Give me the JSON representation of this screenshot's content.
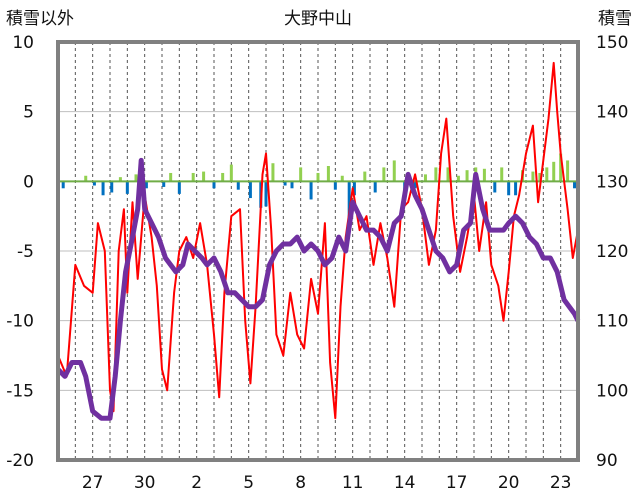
{
  "chart_data": {
    "type": "line",
    "title": "大野中山",
    "left_axis_title": "積雪以外",
    "right_axis_title": "積雪",
    "y_left": {
      "min": -20,
      "max": 10,
      "ticks": [
        10,
        5,
        0,
        -5,
        -10,
        -15,
        -20
      ]
    },
    "y_right": {
      "min": 90,
      "max": 150,
      "ticks": [
        150,
        140,
        130,
        120,
        110,
        100,
        90
      ]
    },
    "x": {
      "min": 25,
      "max": 55,
      "ticks": [
        27,
        30,
        33,
        36,
        39,
        42,
        45,
        48,
        51,
        54
      ],
      "tick_labels": [
        "27",
        "30",
        "2",
        "5",
        "8",
        "11",
        "14",
        "17",
        "20",
        "23"
      ]
    },
    "grid": {
      "horizontal": true,
      "vertical_dashed": "daily"
    },
    "colors": {
      "temperature": "#ff0000",
      "precip_positive": "#92d050",
      "precip_negative": "#0070c0",
      "snow_depth": "#7030a0",
      "frame": "#808080",
      "zero_line": "#70ad47"
    },
    "series": [
      {
        "axis": "left",
        "color": "#ff0000",
        "points": [
          [
            25.0,
            -12.5
          ],
          [
            25.5,
            -14.0
          ],
          [
            26.0,
            -6.0
          ],
          [
            26.5,
            -7.5
          ],
          [
            27.0,
            -8.0
          ],
          [
            27.3,
            -3.0
          ],
          [
            27.7,
            -5.0
          ],
          [
            28.0,
            -15.0
          ],
          [
            28.2,
            -16.5
          ],
          [
            28.5,
            -5.0
          ],
          [
            28.8,
            -2.0
          ],
          [
            29.0,
            -8.0
          ],
          [
            29.3,
            -1.5
          ],
          [
            29.6,
            -7.0
          ],
          [
            30.0,
            -1.0
          ],
          [
            30.4,
            -4.0
          ],
          [
            30.7,
            -7.5
          ],
          [
            31.0,
            -13.5
          ],
          [
            31.3,
            -15.0
          ],
          [
            31.7,
            -8.0
          ],
          [
            32.0,
            -5.0
          ],
          [
            32.4,
            -4.0
          ],
          [
            32.8,
            -5.5
          ],
          [
            33.2,
            -3.0
          ],
          [
            33.6,
            -6.0
          ],
          [
            34.0,
            -11.0
          ],
          [
            34.3,
            -15.5
          ],
          [
            34.6,
            -8.0
          ],
          [
            35.0,
            -2.5
          ],
          [
            35.5,
            -2.0
          ],
          [
            35.8,
            -10.0
          ],
          [
            36.1,
            -14.5
          ],
          [
            36.4,
            -9.0
          ],
          [
            36.8,
            0.5
          ],
          [
            37.0,
            2.0
          ],
          [
            37.3,
            -3.5
          ],
          [
            37.6,
            -11.0
          ],
          [
            38.0,
            -12.5
          ],
          [
            38.4,
            -8.0
          ],
          [
            38.8,
            -11.0
          ],
          [
            39.2,
            -12.0
          ],
          [
            39.6,
            -7.0
          ],
          [
            40.0,
            -9.5
          ],
          [
            40.4,
            -3.0
          ],
          [
            40.7,
            -13.0
          ],
          [
            41.0,
            -17.0
          ],
          [
            41.3,
            -9.0
          ],
          [
            41.6,
            -4.0
          ],
          [
            42.0,
            -0.5
          ],
          [
            42.4,
            -3.5
          ],
          [
            42.8,
            -2.5
          ],
          [
            43.2,
            -6.0
          ],
          [
            43.6,
            -3.0
          ],
          [
            44.0,
            -5.5
          ],
          [
            44.4,
            -9.0
          ],
          [
            44.8,
            -2.0
          ],
          [
            45.2,
            -1.5
          ],
          [
            45.6,
            0.5
          ],
          [
            46.0,
            -2.0
          ],
          [
            46.4,
            -6.0
          ],
          [
            46.8,
            -3.5
          ],
          [
            47.1,
            2.0
          ],
          [
            47.4,
            4.5
          ],
          [
            47.8,
            -2.5
          ],
          [
            48.2,
            -6.5
          ],
          [
            48.6,
            -4.0
          ],
          [
            49.0,
            -1.0
          ],
          [
            49.3,
            -5.0
          ],
          [
            49.7,
            -1.5
          ],
          [
            50.0,
            -6.0
          ],
          [
            50.4,
            -7.5
          ],
          [
            50.7,
            -10.0
          ],
          [
            51.0,
            -6.5
          ],
          [
            51.3,
            -2.5
          ],
          [
            51.6,
            -1.0
          ],
          [
            52.0,
            2.0
          ],
          [
            52.4,
            4.0
          ],
          [
            52.7,
            -1.5
          ],
          [
            53.0,
            1.5
          ],
          [
            53.3,
            4.5
          ],
          [
            53.6,
            8.5
          ],
          [
            53.8,
            5.0
          ],
          [
            54.0,
            2.0
          ],
          [
            54.4,
            -2.0
          ],
          [
            54.7,
            -5.5
          ],
          [
            55.0,
            -3.5
          ]
        ]
      },
      {
        "axis": "right",
        "color": "#7030a0",
        "points": [
          [
            25.0,
            103
          ],
          [
            25.4,
            102
          ],
          [
            25.8,
            104
          ],
          [
            26.3,
            104
          ],
          [
            26.6,
            102
          ],
          [
            27.0,
            97
          ],
          [
            27.5,
            96
          ],
          [
            28.0,
            96
          ],
          [
            28.3,
            102
          ],
          [
            28.6,
            110
          ],
          [
            28.9,
            117
          ],
          [
            29.3,
            122
          ],
          [
            29.6,
            126
          ],
          [
            29.8,
            133
          ],
          [
            30.0,
            126
          ],
          [
            30.4,
            124
          ],
          [
            30.8,
            122
          ],
          [
            31.2,
            119
          ],
          [
            31.8,
            117
          ],
          [
            32.2,
            118
          ],
          [
            32.5,
            121
          ],
          [
            32.9,
            120
          ],
          [
            33.3,
            119
          ],
          [
            33.6,
            118
          ],
          [
            34.0,
            119
          ],
          [
            34.4,
            117
          ],
          [
            34.8,
            114
          ],
          [
            35.2,
            114
          ],
          [
            35.6,
            113
          ],
          [
            36.0,
            112
          ],
          [
            36.4,
            112
          ],
          [
            36.8,
            113
          ],
          [
            37.2,
            118
          ],
          [
            37.6,
            120
          ],
          [
            38.0,
            121
          ],
          [
            38.4,
            121
          ],
          [
            38.8,
            122
          ],
          [
            39.2,
            120
          ],
          [
            39.6,
            121
          ],
          [
            40.0,
            120
          ],
          [
            40.4,
            118
          ],
          [
            40.8,
            119
          ],
          [
            41.2,
            122
          ],
          [
            41.6,
            120
          ],
          [
            42.0,
            127
          ],
          [
            42.4,
            125
          ],
          [
            42.8,
            123
          ],
          [
            43.2,
            123
          ],
          [
            43.6,
            122
          ],
          [
            44.0,
            120
          ],
          [
            44.4,
            124
          ],
          [
            44.8,
            125
          ],
          [
            45.2,
            131
          ],
          [
            45.6,
            128
          ],
          [
            46.0,
            126
          ],
          [
            46.4,
            123
          ],
          [
            46.8,
            120
          ],
          [
            47.2,
            119
          ],
          [
            47.6,
            117
          ],
          [
            48.0,
            118
          ],
          [
            48.4,
            123
          ],
          [
            48.8,
            124
          ],
          [
            49.1,
            131
          ],
          [
            49.5,
            126
          ],
          [
            49.9,
            123
          ],
          [
            50.3,
            123
          ],
          [
            50.7,
            123
          ],
          [
            51.0,
            124
          ],
          [
            51.4,
            125
          ],
          [
            51.8,
            124
          ],
          [
            52.2,
            122
          ],
          [
            52.6,
            121
          ],
          [
            53.0,
            119
          ],
          [
            53.4,
            119
          ],
          [
            53.8,
            117
          ],
          [
            54.2,
            113
          ],
          [
            54.5,
            112
          ],
          [
            54.8,
            111
          ],
          [
            55.0,
            110
          ]
        ]
      }
    ],
    "bars": {
      "axis": "left",
      "positive_color": "#92d050",
      "negative_color": "#0070c0",
      "values": [
        [
          25.0,
          0.3
        ],
        [
          25.3,
          -0.5
        ],
        [
          26.6,
          0.4
        ],
        [
          27.1,
          -0.3
        ],
        [
          27.6,
          -1.0
        ],
        [
          28.1,
          -0.8
        ],
        [
          28.6,
          0.3
        ],
        [
          29.0,
          -0.9
        ],
        [
          29.5,
          0.5
        ],
        [
          30.1,
          -0.5
        ],
        [
          31.1,
          -0.4
        ],
        [
          31.5,
          0.6
        ],
        [
          32.0,
          -0.9
        ],
        [
          32.8,
          0.6
        ],
        [
          33.4,
          0.7
        ],
        [
          34.0,
          -0.5
        ],
        [
          34.5,
          0.6
        ],
        [
          35.0,
          1.2
        ],
        [
          35.4,
          -0.6
        ],
        [
          36.1,
          -1.2
        ],
        [
          36.7,
          -1.9
        ],
        [
          37.0,
          -1.8
        ],
        [
          37.4,
          1.3
        ],
        [
          38.1,
          -0.3
        ],
        [
          38.5,
          -0.5
        ],
        [
          39.0,
          1.0
        ],
        [
          39.6,
          -1.3
        ],
        [
          40.0,
          0.6
        ],
        [
          40.6,
          1.1
        ],
        [
          41.0,
          -0.6
        ],
        [
          41.4,
          0.4
        ],
        [
          41.8,
          -3.0
        ],
        [
          42.1,
          -1.0
        ],
        [
          42.7,
          0.7
        ],
        [
          43.3,
          -0.8
        ],
        [
          43.8,
          1.0
        ],
        [
          44.4,
          1.5
        ],
        [
          45.0,
          -0.6
        ],
        [
          45.6,
          -0.5
        ],
        [
          46.2,
          0.5
        ],
        [
          46.8,
          1.0
        ],
        [
          47.5,
          1.0
        ],
        [
          48.1,
          0.4
        ],
        [
          48.6,
          0.8
        ],
        [
          49.1,
          1.0
        ],
        [
          49.6,
          0.9
        ],
        [
          50.2,
          -0.8
        ],
        [
          50.6,
          1.0
        ],
        [
          51.0,
          -1.0
        ],
        [
          51.4,
          -1.0
        ],
        [
          51.8,
          0.8
        ],
        [
          52.4,
          0.7
        ],
        [
          52.8,
          0.6
        ],
        [
          53.2,
          1.0
        ],
        [
          53.6,
          1.4
        ],
        [
          54.0,
          2.0
        ],
        [
          54.4,
          1.5
        ],
        [
          54.8,
          -0.5
        ]
      ]
    }
  }
}
